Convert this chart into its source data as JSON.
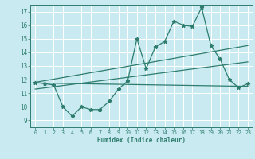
{
  "title": "",
  "xlabel": "Humidex (Indice chaleur)",
  "x_ticks": [
    0,
    1,
    2,
    3,
    4,
    5,
    6,
    7,
    8,
    9,
    10,
    11,
    12,
    13,
    14,
    15,
    16,
    17,
    18,
    19,
    20,
    21,
    22,
    23
  ],
  "ylim": [
    8.5,
    17.5
  ],
  "xlim": [
    -0.5,
    23.5
  ],
  "yticks": [
    9,
    10,
    11,
    12,
    13,
    14,
    15,
    16,
    17
  ],
  "bg_color": "#c8eaf0",
  "line_color": "#2e7d6e",
  "grid_color": "#ffffff",
  "main_x": [
    0,
    1,
    2,
    3,
    4,
    5,
    6,
    7,
    8,
    9,
    10,
    11,
    12,
    13,
    14,
    15,
    16,
    17,
    18,
    19,
    20,
    21,
    22,
    23
  ],
  "main_y": [
    11.8,
    11.7,
    11.6,
    10.0,
    9.3,
    10.0,
    9.8,
    9.8,
    10.4,
    11.3,
    11.9,
    15.0,
    12.8,
    14.4,
    14.8,
    16.3,
    16.0,
    15.9,
    17.3,
    14.5,
    13.5,
    12.0,
    11.4,
    11.7
  ],
  "trend1_x": [
    0,
    23
  ],
  "trend1_y": [
    11.8,
    14.5
  ],
  "trend2_x": [
    0,
    23
  ],
  "trend2_y": [
    11.75,
    11.5
  ],
  "trend3_x": [
    0,
    23
  ],
  "trend3_y": [
    11.3,
    13.3
  ]
}
